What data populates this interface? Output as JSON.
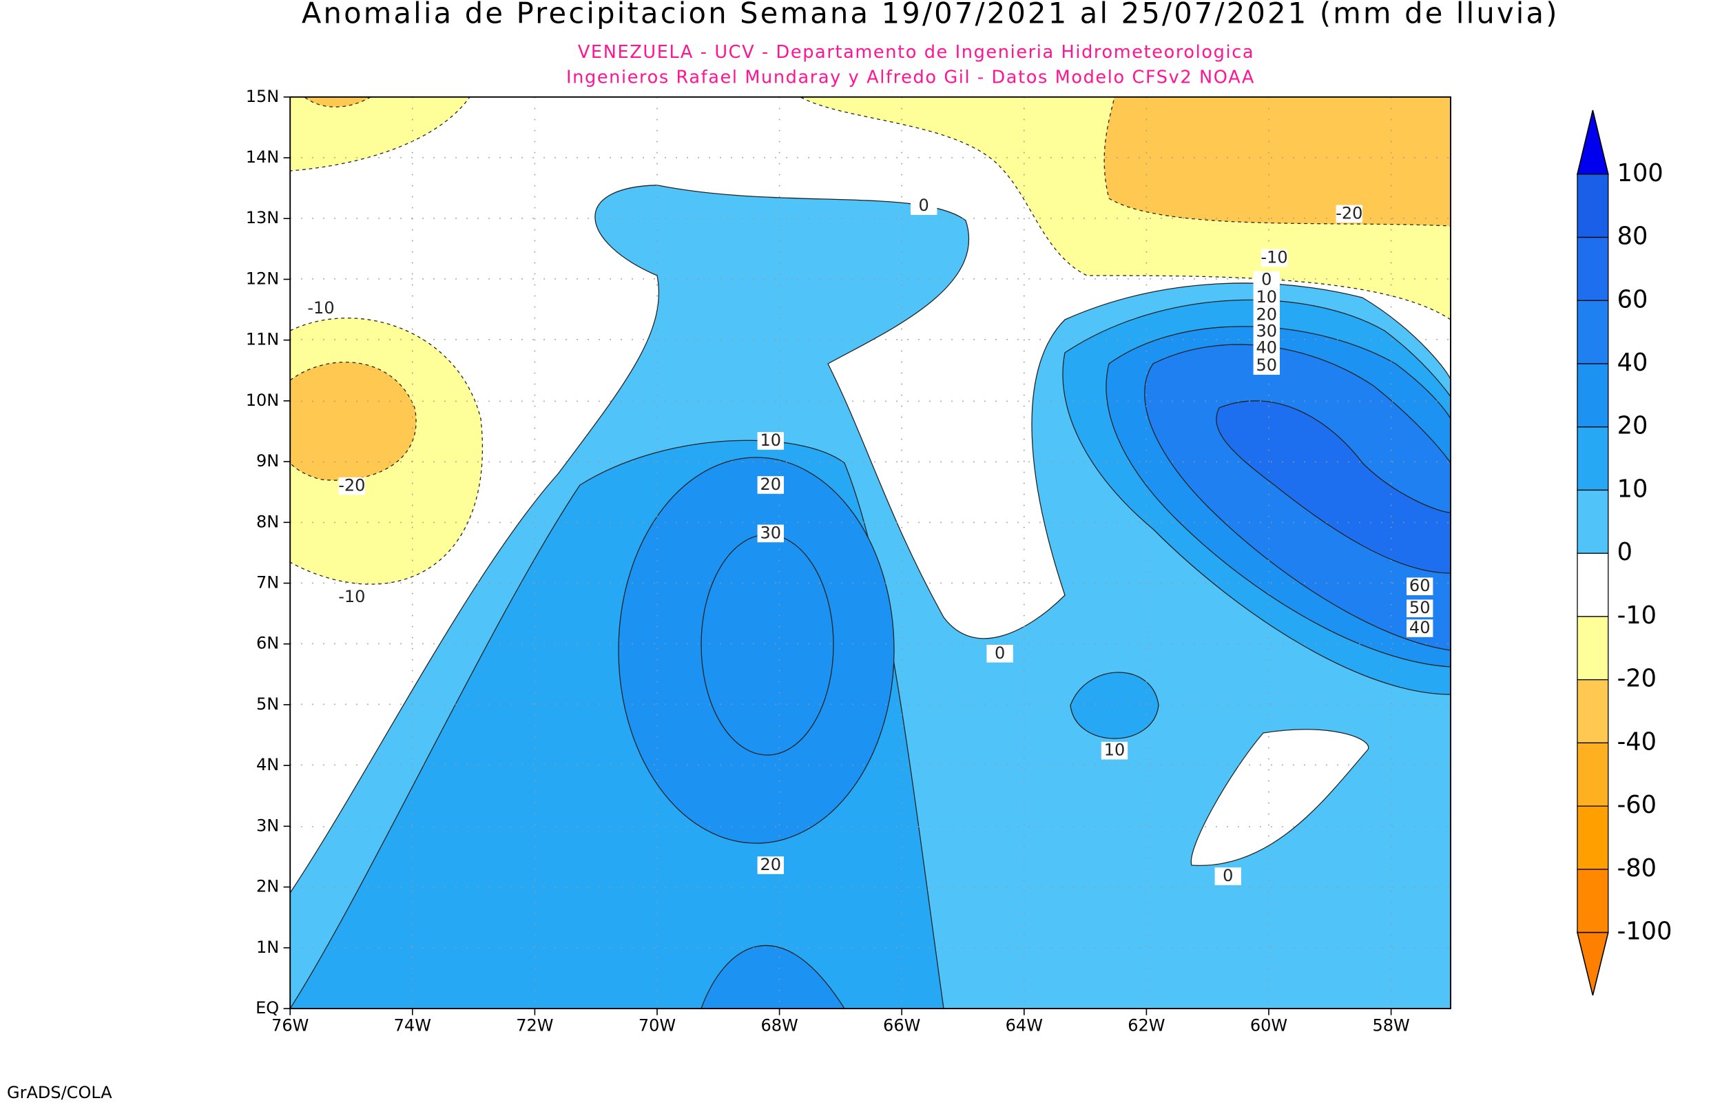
{
  "header": {
    "title": "Anomalia de Precipitacion Semana 19/07/2021 al 25/07/2021 (mm de lluvia)",
    "subtitle_lines": [
      "VENEZUELA - UCV - Departamento de Ingenieria Hidrometeorologica",
      "Ingenieros Rafael Mundaray y Alfredo Gil - Datos Modelo CFSv2 NOAA"
    ],
    "subtitle_color": "#ff1493"
  },
  "map": {
    "lat_labels": [
      "15N",
      "14N",
      "13N",
      "12N",
      "11N",
      "10N",
      "9N",
      "8N",
      "7N",
      "6N",
      "5N",
      "4N",
      "3N",
      "2N",
      "1N",
      "EQ"
    ],
    "lon_labels": [
      "76W",
      "74W",
      "72W",
      "70W",
      "68W",
      "66W",
      "64W",
      "62W",
      "60W",
      "58W"
    ],
    "contour_labels": [
      "0",
      "-20",
      "-10",
      "0",
      "10",
      "20",
      "30",
      "40",
      "50",
      "-10",
      "10",
      "20",
      "30",
      "-20",
      "-10",
      "0",
      "60",
      "50",
      "40",
      "10",
      "20",
      "0"
    ]
  },
  "colorbar": {
    "labels": [
      "100",
      "80",
      "60",
      "40",
      "20",
      "10",
      "0",
      "-10",
      "-20",
      "-40",
      "-60",
      "-80",
      "-100"
    ],
    "colors": [
      "#0000ee",
      "#1a5fe8",
      "#1e6ff0",
      "#1f80f2",
      "#1c92f2",
      "#27a8f5",
      "#50c4f8",
      "#ffffff",
      "#ffff99",
      "#ffc850",
      "#ffb020",
      "#ffa000",
      "#ff8800",
      "#ff8000"
    ]
  },
  "footer": "GrADS/COLA"
}
